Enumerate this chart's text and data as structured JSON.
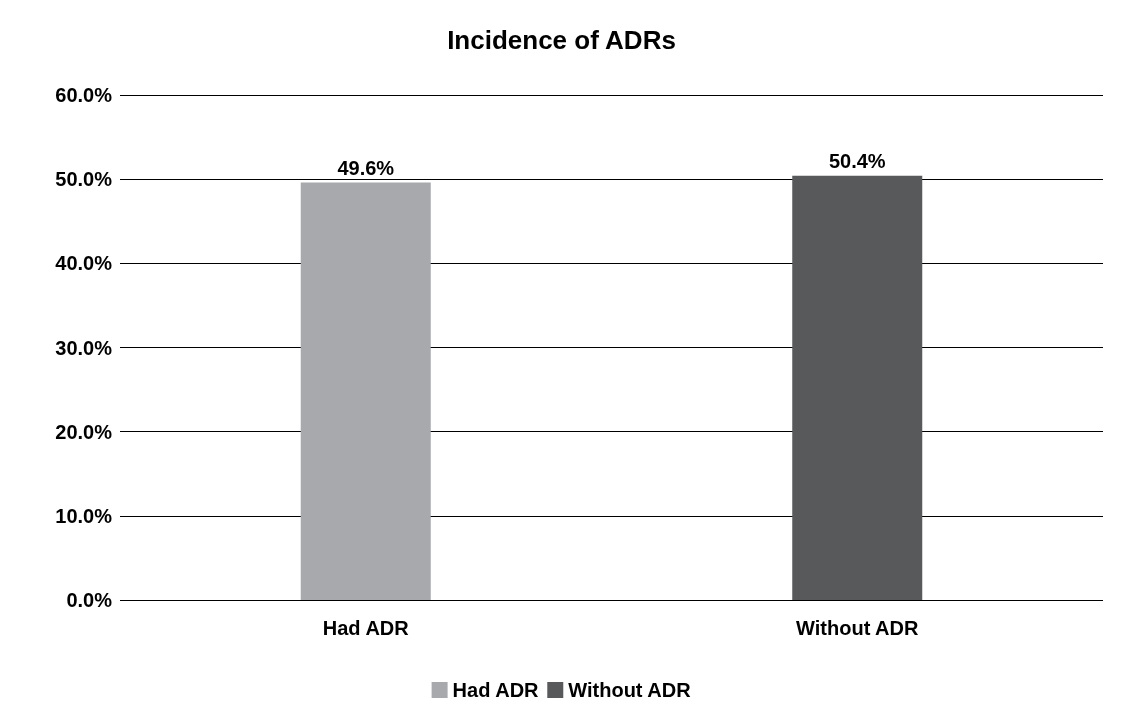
{
  "chart_data": {
    "type": "bar",
    "title": "Incidence of ADRs",
    "categories": [
      "Had ADR",
      "Without ADR"
    ],
    "series": [
      {
        "name": "Had ADR",
        "color": "#a8a9ad",
        "values": [
          49.6,
          null
        ],
        "value_labels": [
          "49.6%",
          null
        ]
      },
      {
        "name": "Without ADR",
        "color": "#58595b",
        "values": [
          null,
          50.4
        ],
        "value_labels": [
          null,
          "50.4%"
        ]
      }
    ],
    "ylim": [
      0,
      60
    ],
    "yticks": [
      {
        "value": 0,
        "label": "0.0%"
      },
      {
        "value": 10,
        "label": "10.0%"
      },
      {
        "value": 20,
        "label": "20.0%"
      },
      {
        "value": 30,
        "label": "30.0%"
      },
      {
        "value": 40,
        "label": "40.0%"
      },
      {
        "value": 50,
        "label": "50.0%"
      },
      {
        "value": 60,
        "label": "60.0%"
      }
    ],
    "grid": "y",
    "legend": "bottom"
  }
}
